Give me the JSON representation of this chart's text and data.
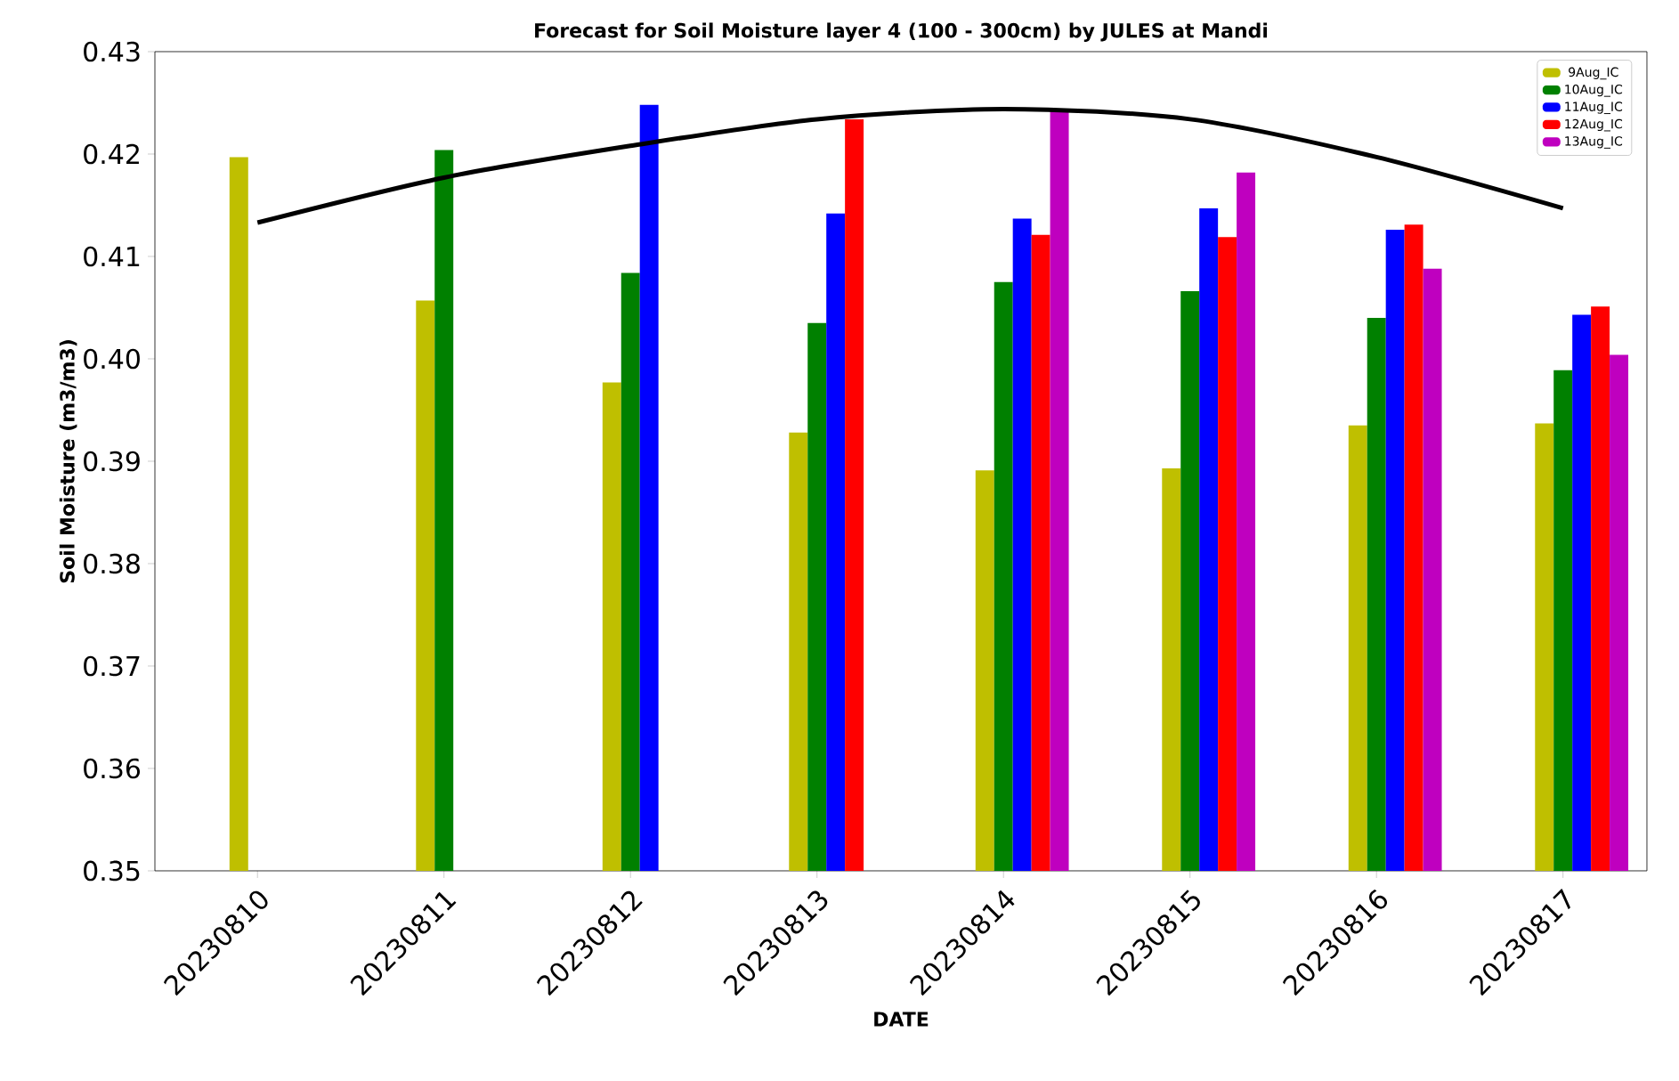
{
  "chart_data": {
    "type": "bar",
    "title": "Forecast for Soil Moisture layer 4 (100 - 300cm) by JULES at Mandi",
    "xlabel": "DATE",
    "ylabel": "Soil Moisture (m3/m3)",
    "categories": [
      "20230810",
      "20230811",
      "20230812",
      "20230813",
      "20230814",
      "20230815",
      "20230816",
      "20230817"
    ],
    "series": [
      {
        "name": "9Aug_IC",
        "color": "#bfbf00",
        "values": [
          0.4197,
          0.4057,
          0.3977,
          0.3928,
          0.3891,
          0.3893,
          0.3935,
          0.3937
        ]
      },
      {
        "name": "10Aug_IC",
        "color": "#008000",
        "values": [
          null,
          0.4204,
          0.4084,
          0.4035,
          0.4075,
          0.4066,
          0.404,
          0.3989
        ]
      },
      {
        "name": "11Aug_IC",
        "color": "#0000ff",
        "values": [
          null,
          null,
          0.4248,
          0.4142,
          0.4137,
          0.4147,
          0.4126,
          0.4043
        ]
      },
      {
        "name": "12Aug_IC",
        "color": "#ff0000",
        "values": [
          null,
          null,
          null,
          0.4234,
          0.4121,
          0.4119,
          0.4131,
          0.4051
        ]
      },
      {
        "name": "13Aug_IC",
        "color": "#bf00bf",
        "values": [
          null,
          null,
          null,
          null,
          0.4244,
          0.4182,
          0.4088,
          0.4004
        ]
      },
      {
        "type": "line",
        "color": "#000000",
        "values": [
          0.4133,
          0.4177,
          0.4208,
          0.4234,
          0.4244,
          0.4234,
          0.4197,
          0.4147
        ]
      }
    ],
    "ylim": [
      0.35,
      0.43
    ],
    "yticks": [
      {
        "value": 0.35,
        "label": "0.35"
      },
      {
        "value": 0.36,
        "label": "0.36"
      },
      {
        "value": 0.37,
        "label": "0.37"
      },
      {
        "value": 0.38,
        "label": "0.38"
      },
      {
        "value": 0.39,
        "label": "0.39"
      },
      {
        "value": 0.4,
        "label": "0.40"
      },
      {
        "value": 0.41,
        "label": "0.41"
      },
      {
        "value": 0.42,
        "label": "0.42"
      },
      {
        "value": 0.43,
        "label": "0.43"
      }
    ],
    "legend": "top right",
    "grid": false
  }
}
